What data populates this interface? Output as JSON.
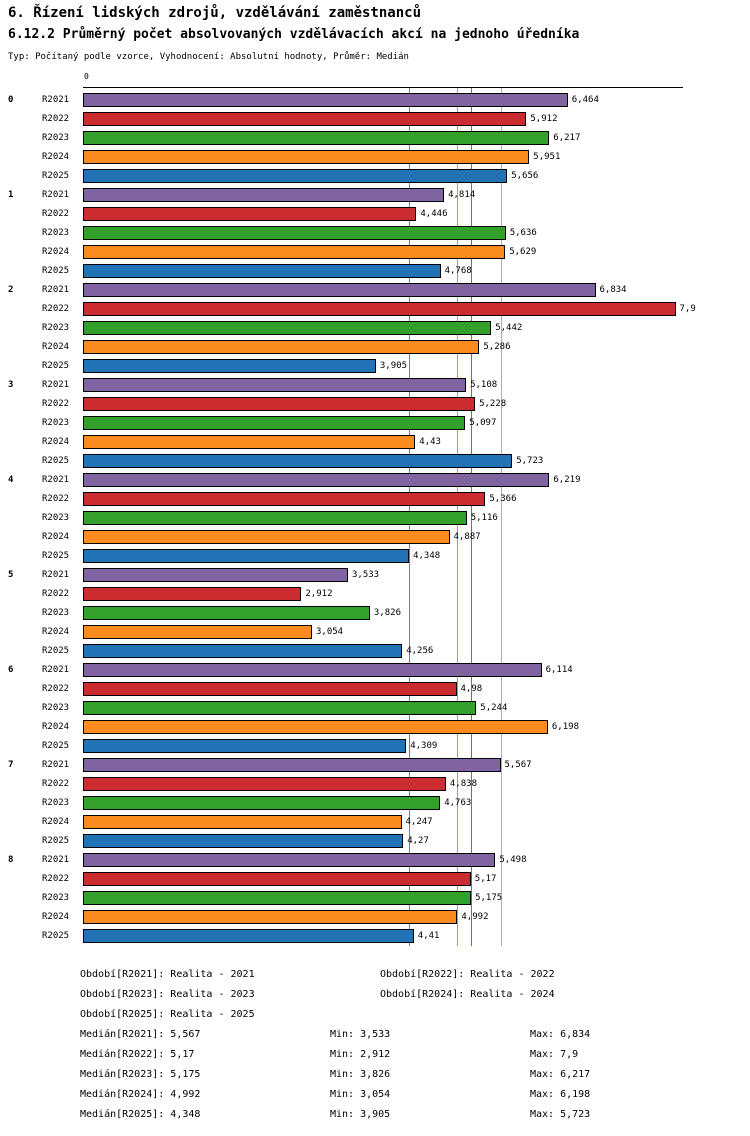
{
  "header": {
    "title": "6. Řízení lidských zdrojů, vzdělávání zaměstnanců",
    "subtitle": "6.12.2 Průměrný počet absolvovaných vzdělávacích akcí na jednoho úředníka",
    "meta": "Typ: Počítaný podle vzorce, Vyhodnocení: Absolutní hodnoty, Průměr: Medián"
  },
  "chart_data": {
    "type": "bar",
    "orientation": "horizontal",
    "title": "6.12.2 Průměrný počet absolvovaných vzdělávacích akcí na jednoho úředníka",
    "axis_zero_label": "0",
    "xlim": [
      0,
      8
    ],
    "grid": false,
    "categories": [
      "0",
      "1",
      "2",
      "3",
      "4",
      "5",
      "6",
      "7",
      "8"
    ],
    "series": [
      {
        "name": "R2021",
        "color": "#8064A2",
        "median_line_color": "#B3A6C9",
        "values": [
          6.464,
          4.814,
          6.834,
          5.108,
          6.219,
          3.533,
          6.114,
          5.567,
          5.498
        ],
        "labels": [
          "6,464",
          "4,814",
          "6,834",
          "5,108",
          "6,219",
          "3,533",
          "6,114",
          "5,567",
          "5,498"
        ],
        "median": 5.567
      },
      {
        "name": "R2022",
        "color": "#CB2C30",
        "median_line_color": "#993333",
        "values": [
          5.912,
          4.446,
          7.9,
          5.228,
          5.366,
          2.912,
          4.98,
          4.838,
          5.17
        ],
        "labels": [
          "5,912",
          "4,446",
          "7,9",
          "5,228",
          "5,366",
          "2,912",
          "4,98",
          "4,838",
          "5,17"
        ],
        "median": 5.17
      },
      {
        "name": "R2023",
        "color": "#33A02C",
        "median_line_color": "#7F7F00",
        "values": [
          6.217,
          5.636,
          5.442,
          5.097,
          5.116,
          3.826,
          5.244,
          4.763,
          5.175
        ],
        "labels": [
          "6,217",
          "5,636",
          "5,442",
          "5,097",
          "5,116",
          "3,826",
          "5,244",
          "4,763",
          "5,175"
        ],
        "median": 5.175
      },
      {
        "name": "R2024",
        "color": "#FA8B1E",
        "median_line_color": "#E8940A",
        "values": [
          5.951,
          5.629,
          5.286,
          4.43,
          4.887,
          3.054,
          6.198,
          4.247,
          4.992
        ],
        "labels": [
          "5,951",
          "5,629",
          "5,286",
          "4,43",
          "4,887",
          "3,054",
          "6,198",
          "4,247",
          "4,992"
        ],
        "median": 4.992
      },
      {
        "name": "R2025",
        "color": "#2273B5",
        "median_line_color": "#4D8FA8",
        "values": [
          5.656,
          4.768,
          3.905,
          5.723,
          4.348,
          4.256,
          4.309,
          4.27,
          4.41
        ],
        "labels": [
          "5,656",
          "4,768",
          "3,905",
          "5,723",
          "4,348",
          "4,256",
          "4,309",
          "4,27",
          "4,41"
        ],
        "median": 4.348
      }
    ]
  },
  "legend": [
    {
      "text": "Období[R2021]: Realita - 2021"
    },
    {
      "text": "Období[R2022]: Realita - 2022"
    },
    {
      "text": "Období[R2023]: Realita - 2023"
    },
    {
      "text": "Období[R2024]: Realita - 2024"
    },
    {
      "text": "Období[R2025]: Realita - 2025"
    }
  ],
  "stats": [
    {
      "median_text": "Medián[R2021]: 5,567",
      "min_text": "Min: 3,533",
      "max_text": "Max: 6,834"
    },
    {
      "median_text": "Medián[R2022]: 5,17",
      "min_text": "Min: 2,912",
      "max_text": "Max: 7,9"
    },
    {
      "median_text": "Medián[R2023]: 5,175",
      "min_text": "Min: 3,826",
      "max_text": "Max: 6,217"
    },
    {
      "median_text": "Medián[R2024]: 4,992",
      "min_text": "Min: 3,054",
      "max_text": "Max: 6,198"
    },
    {
      "median_text": "Medián[R2025]: 4,348",
      "min_text": "Min: 3,905",
      "max_text": "Max: 5,723"
    }
  ]
}
